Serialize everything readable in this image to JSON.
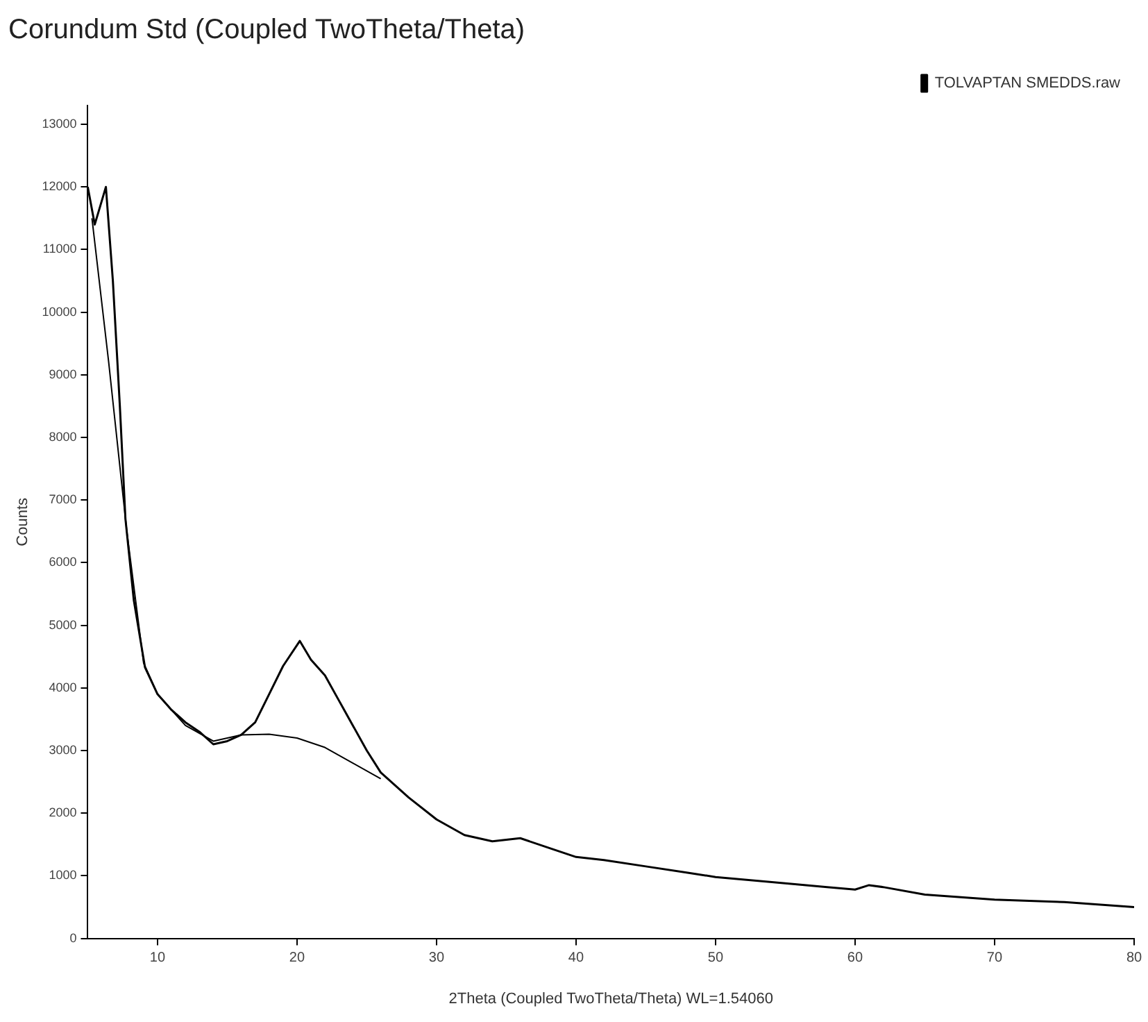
{
  "chart_data": {
    "type": "line",
    "title": "Corundum Std (Coupled TwoTheta/Theta)",
    "xlabel": "2Theta (Coupled TwoTheta/Theta) WL=1.54060",
    "ylabel": "Counts",
    "xlim": [
      5,
      80
    ],
    "xticks": [
      10,
      20,
      30,
      40,
      50,
      60,
      70,
      80
    ],
    "ylim": [
      0,
      13300
    ],
    "yticks": [
      0,
      1000,
      2000,
      3000,
      4000,
      5000,
      6000,
      7000,
      8000,
      9000,
      10000,
      11000,
      12000,
      13000
    ],
    "grid": false,
    "legend": "top right",
    "marker": "none",
    "line_style": "solid",
    "series": [
      {
        "name": "TOLVAPTAN SMEDDS.raw",
        "color": "#000000",
        "x": [
          5,
          5.5,
          5.9,
          6.3,
          6.8,
          7.3,
          7.7,
          8.3,
          9.1,
          10,
          11,
          12,
          13,
          14,
          15,
          16,
          17,
          18,
          19,
          20.2,
          21,
          22,
          23,
          24,
          25,
          26,
          27,
          28,
          30,
          32,
          34,
          36,
          38,
          40,
          42,
          45,
          48,
          50,
          55,
          58,
          60,
          61,
          62,
          65,
          70,
          75,
          80
        ],
        "values": [
          12000,
          11400,
          11700,
          12000,
          10500,
          8500,
          6700,
          5400,
          4330,
          3900,
          3650,
          3450,
          3300,
          3100,
          3150,
          3250,
          3450,
          3900,
          4350,
          4750,
          4450,
          4200,
          3800,
          3400,
          3000,
          2650,
          2450,
          2250,
          1900,
          1650,
          1550,
          1600,
          1450,
          1300,
          1250,
          1150,
          1050,
          980,
          880,
          820,
          780,
          850,
          820,
          700,
          620,
          580,
          500
        ]
      },
      {
        "color": "#000000",
        "x": [
          5.3,
          6.5,
          7.8,
          9,
          10,
          12,
          14,
          16,
          18,
          20,
          22,
          24,
          26
        ],
        "values": [
          11500,
          9200,
          6500,
          4400,
          3900,
          3400,
          3150,
          3250,
          3260,
          3200,
          3050,
          2800,
          2550
        ]
      }
    ]
  }
}
